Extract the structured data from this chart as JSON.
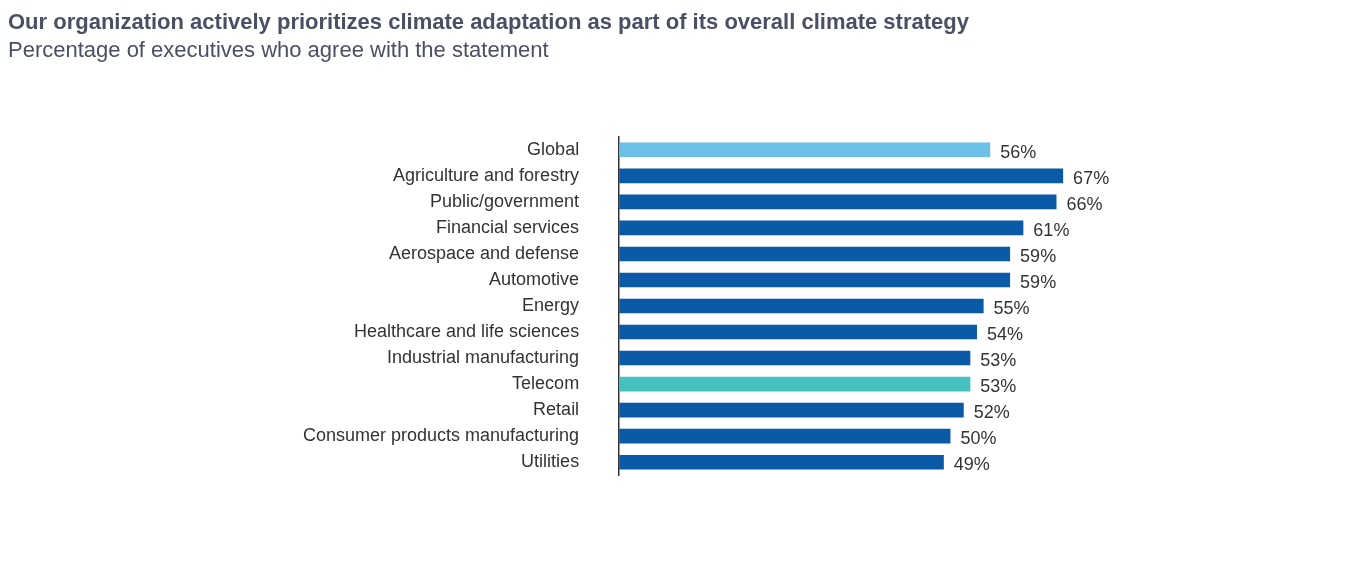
{
  "chart_data": {
    "type": "bar",
    "orientation": "horizontal",
    "title": "Our organization actively prioritizes climate adaptation as part of its overall climate strategy",
    "subtitle": "Percentage of executives who agree with the statement",
    "categories": [
      "Global",
      "Agriculture and forestry",
      "Public/government",
      "Financial services",
      "Aerospace and defense",
      "Automotive",
      "Energy",
      "Healthcare and life sciences",
      "Industrial manufacturing",
      "Telecom",
      "Retail",
      "Consumer products manufacturing",
      "Utilities"
    ],
    "values": [
      56,
      67,
      66,
      61,
      59,
      59,
      55,
      54,
      53,
      53,
      52,
      50,
      49
    ],
    "value_labels": [
      "56%",
      "67%",
      "66%",
      "61%",
      "59%",
      "59%",
      "55%",
      "54%",
      "53%",
      "53%",
      "52%",
      "50%",
      "49%"
    ],
    "colors": [
      "#6cc0e8",
      "#0a5aa8",
      "#0a5aa8",
      "#0a5aa8",
      "#0a5aa8",
      "#0a5aa8",
      "#0a5aa8",
      "#0a5aa8",
      "#0a5aa8",
      "#45c1c0",
      "#0a5aa8",
      "#0a5aa8",
      "#0a5aa8"
    ],
    "tick_labels": "y",
    "grid": false,
    "legend": false
  }
}
